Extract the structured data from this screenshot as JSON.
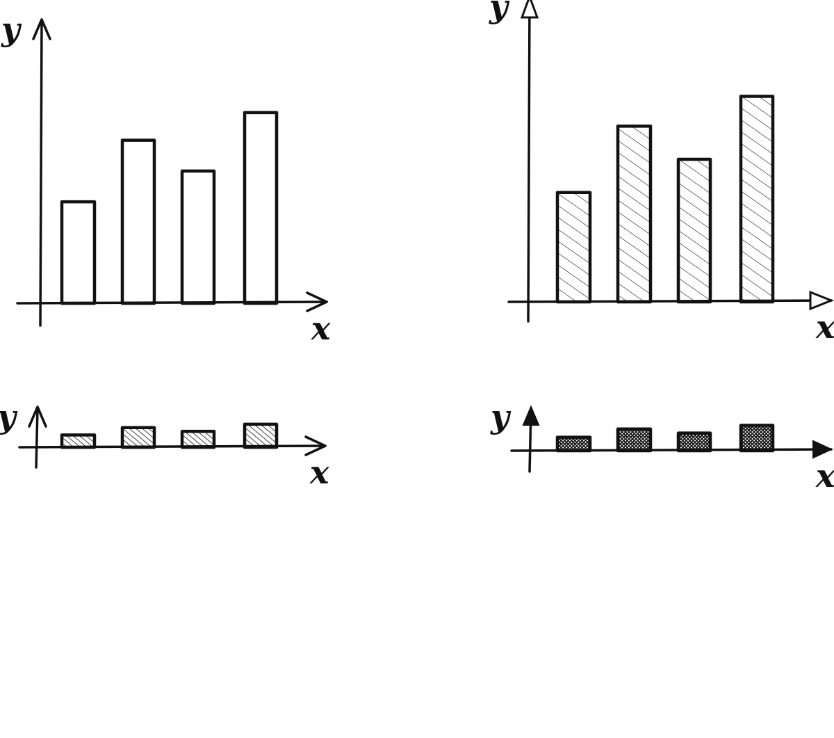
{
  "styles": {
    "ink": "#111111",
    "paper": "#ffffff"
  },
  "chart_data": [
    {
      "type": "bar",
      "categories": [
        "",
        "",
        "",
        ""
      ],
      "values": [
        3.3,
        5.3,
        4.3,
        6.2
      ],
      "xlabel": "x",
      "ylabel": "y",
      "ylim": [
        0,
        9
      ],
      "grid": false,
      "fill": "none",
      "arrow": "open"
    },
    {
      "type": "bar",
      "categories": [
        "",
        "",
        "",
        ""
      ],
      "values": [
        3.3,
        5.3,
        4.3,
        6.2
      ],
      "xlabel": "x",
      "ylabel": "y",
      "ylim": [
        0,
        9
      ],
      "grid": false,
      "fill": "light-hatch",
      "arrow": "hollow"
    },
    {
      "type": "bar",
      "categories": [
        "",
        "",
        "",
        ""
      ],
      "values": [
        3.3,
        5.3,
        4.3,
        6.2
      ],
      "xlabel": "x",
      "ylabel": "y",
      "ylim": [
        0,
        9
      ],
      "grid": false,
      "fill": "medium-hatch",
      "arrow": "open"
    },
    {
      "type": "bar",
      "categories": [
        "",
        "",
        "",
        ""
      ],
      "values": [
        3.3,
        5.3,
        4.3,
        6.2
      ],
      "xlabel": "x",
      "ylabel": "y",
      "ylim": [
        0,
        9
      ],
      "grid": false,
      "fill": "cross-hatch",
      "arrow": "solid"
    }
  ]
}
